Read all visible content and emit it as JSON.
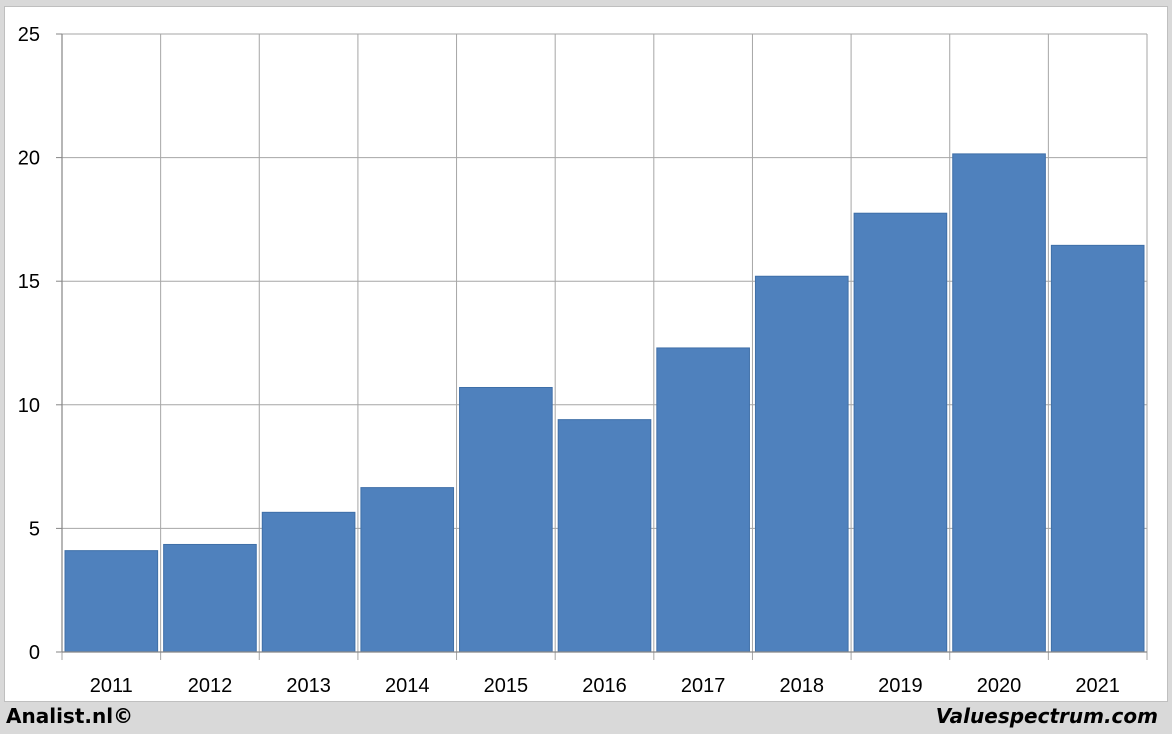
{
  "chart_data": {
    "type": "bar",
    "categories": [
      "2011",
      "2012",
      "2013",
      "2014",
      "2015",
      "2016",
      "2017",
      "2018",
      "2019",
      "2020",
      "2021"
    ],
    "values": [
      4.1,
      4.35,
      5.65,
      6.65,
      10.7,
      9.4,
      12.3,
      15.2,
      17.75,
      20.15,
      16.45
    ],
    "ylim": [
      0,
      25
    ],
    "yticks": [
      "0",
      "5",
      "10",
      "15",
      "20",
      "25"
    ],
    "title": "",
    "xlabel": "",
    "ylabel": "",
    "grid": true,
    "bar_color": "#4f81bd"
  },
  "footer": {
    "left": "Analist.nl©",
    "right": "Valuespectrum.com"
  }
}
